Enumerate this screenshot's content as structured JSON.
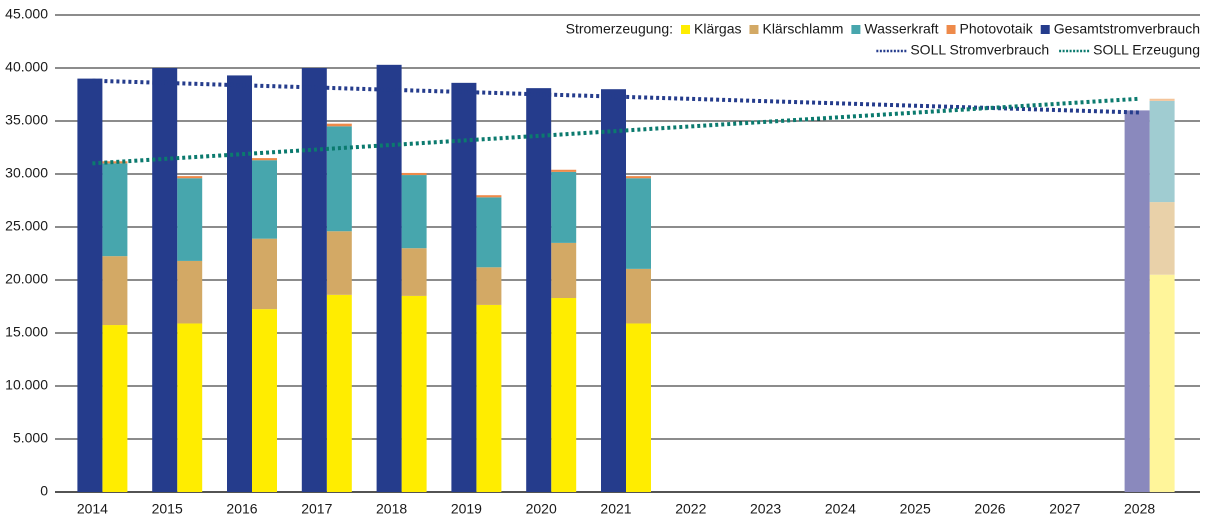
{
  "chart_data": {
    "type": "bar",
    "categories": [
      "2014",
      "2015",
      "2016",
      "2017",
      "2018",
      "2019",
      "2020",
      "2021",
      "2022",
      "2023",
      "2024",
      "2025",
      "2026",
      "2027",
      "2028"
    ],
    "legend_title": "Stromerzeugung:",
    "legend": "top-right",
    "ylim": [
      0,
      45000
    ],
    "yticks": [
      0,
      {
        "value": 5000,
        "label": "5.000"
      },
      {
        "value": 10000,
        "label": "10.000"
      },
      {
        "value": 15000,
        "label": "15.000"
      },
      {
        "value": 20000,
        "label": "20.000"
      },
      {
        "value": 25000,
        "label": "25.000"
      },
      {
        "value": 30000,
        "label": "30.000"
      },
      {
        "value": 35000,
        "label": "35.000"
      },
      {
        "value": 40000,
        "label": "40.000"
      },
      {
        "value": 45000,
        "label": "45.000"
      }
    ],
    "grid": true,
    "series": [
      {
        "name": "Klärgas",
        "type": "bar",
        "stack": "erzeugung",
        "color": "#ffed00",
        "colors": [
          "#ffed00",
          "#ffed00",
          "#ffed00",
          "#ffed00",
          "#ffed00",
          "#ffed00",
          "#ffed00",
          "#ffed00",
          "#ffed00",
          "#ffed00",
          "#ffed00",
          "#ffed00",
          "#ffed00",
          "#ffed00",
          "#fff59a"
        ],
        "values": [
          15750,
          15900,
          17250,
          18600,
          18500,
          17650,
          18300,
          15900,
          null,
          null,
          null,
          null,
          null,
          null,
          20500
        ]
      },
      {
        "name": "Klärschlamm",
        "type": "bar",
        "stack": "erzeugung",
        "color": "#d3a965",
        "colors": [
          "#d3a965",
          "#d3a965",
          "#d3a965",
          "#d3a965",
          "#d3a965",
          "#d3a965",
          "#d3a965",
          "#d3a965",
          "#d3a965",
          "#d3a965",
          "#d3a965",
          "#d3a965",
          "#d3a965",
          "#d3a965",
          "#e9d1a9"
        ],
        "values": [
          6500,
          5900,
          6650,
          6000,
          4500,
          3550,
          5200,
          5150,
          null,
          null,
          null,
          null,
          null,
          null,
          6850
        ]
      },
      {
        "name": "Wasserkraft",
        "type": "bar",
        "stack": "erzeugung",
        "color": "#47a6ad",
        "colors": [
          "#47a6ad",
          "#47a6ad",
          "#47a6ad",
          "#47a6ad",
          "#47a6ad",
          "#47a6ad",
          "#47a6ad",
          "#47a6ad",
          "#47a6ad",
          "#47a6ad",
          "#47a6ad",
          "#47a6ad",
          "#47a6ad",
          "#47a6ad",
          "#a0ccd1"
        ],
        "values": [
          8750,
          7800,
          7400,
          9900,
          6900,
          6600,
          6700,
          8550,
          null,
          null,
          null,
          null,
          null,
          null,
          9550
        ]
      },
      {
        "name": "Photovotaik",
        "type": "bar",
        "stack": "erzeugung",
        "color": "#ee8a4a",
        "colors": [
          "#ee8a4a",
          "#ee8a4a",
          "#ee8a4a",
          "#ee8a4a",
          "#ee8a4a",
          "#ee8a4a",
          "#ee8a4a",
          "#ee8a4a",
          "#ee8a4a",
          "#ee8a4a",
          "#ee8a4a",
          "#ee8a4a",
          "#ee8a4a",
          "#ee8a4a",
          "#f4c49a"
        ],
        "values": [
          200,
          200,
          200,
          250,
          200,
          200,
          200,
          200,
          null,
          null,
          null,
          null,
          null,
          null,
          200
        ]
      },
      {
        "name": "Gesamtstromverbrauch",
        "type": "bar",
        "stack": "verbrauch",
        "color": "#253c8c",
        "colors": [
          "#253c8c",
          "#253c8c",
          "#253c8c",
          "#253c8c",
          "#253c8c",
          "#253c8c",
          "#253c8c",
          "#253c8c",
          "#253c8c",
          "#253c8c",
          "#253c8c",
          "#253c8c",
          "#253c8c",
          "#253c8c",
          "#8a89bd"
        ],
        "values": [
          39000,
          40000,
          39300,
          40000,
          40300,
          38600,
          38100,
          38000,
          null,
          null,
          null,
          null,
          null,
          null,
          36000
        ]
      },
      {
        "name": "SOLL Stromverbrauch",
        "type": "line",
        "color": "#253c8c",
        "values": [
          38800,
          38590,
          38370,
          38160,
          37940,
          37730,
          37510,
          37300,
          37090,
          36870,
          36660,
          36440,
          36230,
          36010,
          35800
        ]
      },
      {
        "name": "SOLL Erzeugung",
        "type": "line",
        "color": "#0b7a6e",
        "values": [
          31000,
          31440,
          31870,
          32310,
          32740,
          33180,
          33610,
          34050,
          34490,
          34920,
          35360,
          35790,
          36230,
          36660,
          37100
        ]
      }
    ]
  }
}
